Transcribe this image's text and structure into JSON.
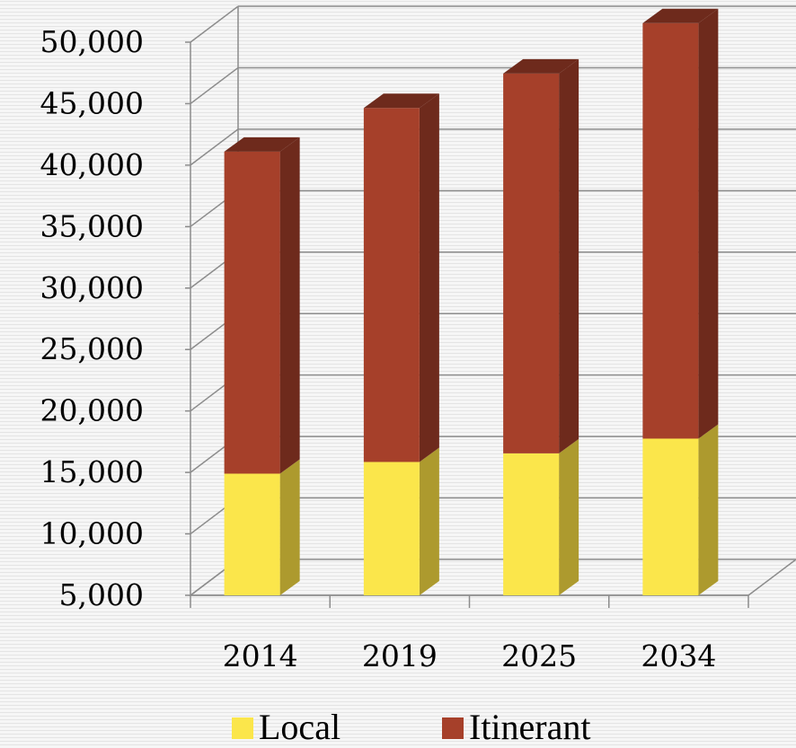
{
  "chart_data": {
    "type": "bar",
    "subtype": "stacked-3d-column",
    "categories": [
      "2014",
      "2019",
      "2025",
      "2034"
    ],
    "series": [
      {
        "name": "Local",
        "values": [
          9900,
          10850,
          11550,
          12750
        ],
        "color": "#fbe64b",
        "side_color": "#ad9a2e"
      },
      {
        "name": "Itinerant",
        "values": [
          26200,
          28800,
          30900,
          33800
        ],
        "color": "#a6402a",
        "side_color": "#6e2a1c"
      }
    ],
    "ylim": [
      5000,
      50000
    ],
    "ytick_step": 5000,
    "ytick_labels": [
      "5,000",
      "10,000",
      "15,000",
      "20,000",
      "25,000",
      "30,000",
      "35,000",
      "40,000",
      "45,000",
      "50,000"
    ],
    "grid": true,
    "legend_position": "bottom",
    "grid_color": "#8c8c8c",
    "title": "",
    "xlabel": "",
    "ylabel": ""
  }
}
